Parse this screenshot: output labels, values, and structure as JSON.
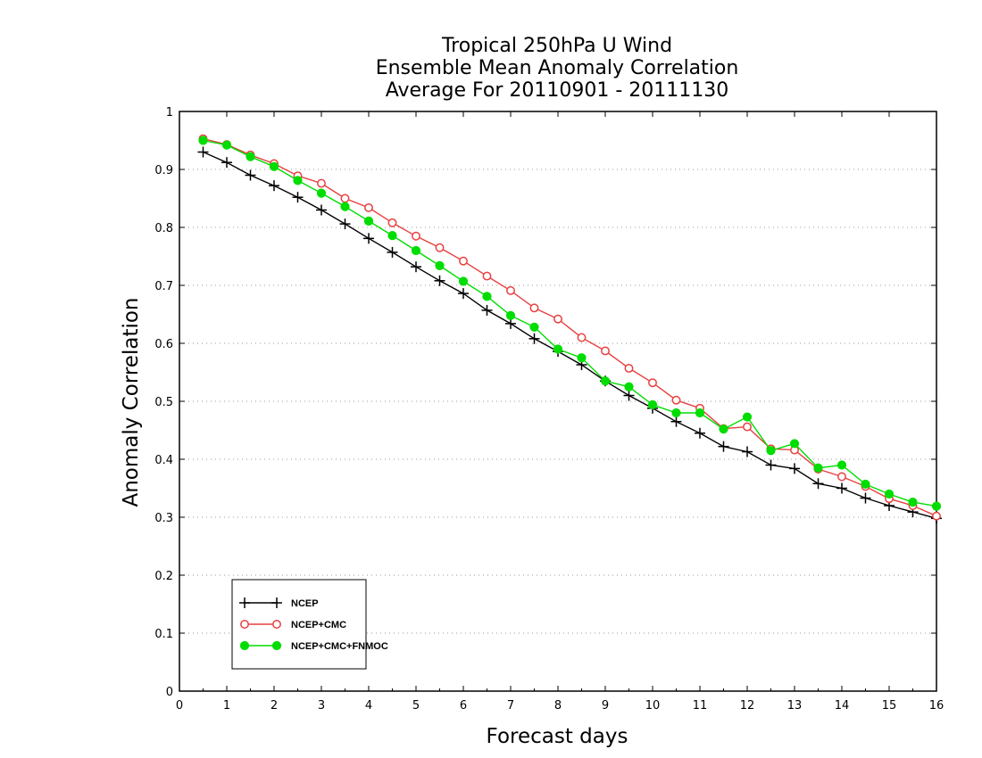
{
  "chart_data": {
    "type": "line",
    "title": [
      "Tropical 250hPa U Wind",
      "Ensemble Mean Anomaly Correlation",
      "Average For 20110901 - 20111130"
    ],
    "xlabel": "Forecast days",
    "ylabel": "Anomaly Correlation",
    "xlim": [
      0,
      16
    ],
    "ylim": [
      0,
      1
    ],
    "xticks": [
      0,
      1,
      2,
      3,
      4,
      5,
      6,
      7,
      8,
      9,
      10,
      11,
      12,
      13,
      14,
      15,
      16
    ],
    "yticks": [
      0,
      0.1,
      0.2,
      0.3,
      0.4,
      0.5,
      0.6,
      0.7,
      0.8,
      0.9,
      1
    ],
    "grid": "horizontal dotted",
    "legend_position": "bottom-left",
    "x": [
      0.5,
      1,
      1.5,
      2,
      2.5,
      3,
      3.5,
      4,
      4.5,
      5,
      5.5,
      6,
      6.5,
      7,
      7.5,
      8,
      8.5,
      9,
      9.5,
      10,
      10.5,
      11,
      11.5,
      12,
      12.5,
      13,
      13.5,
      14,
      14.5,
      15,
      15.5,
      16
    ],
    "series": [
      {
        "name": "NCEP",
        "color": "#000000",
        "marker": "plus",
        "values": [
          0.93,
          0.912,
          0.89,
          0.872,
          0.852,
          0.83,
          0.806,
          0.781,
          0.757,
          0.732,
          0.708,
          0.686,
          0.657,
          0.634,
          0.608,
          0.586,
          0.563,
          0.535,
          0.51,
          0.488,
          0.465,
          0.445,
          0.422,
          0.413,
          0.39,
          0.384,
          0.358,
          0.35,
          0.333,
          0.32,
          0.309,
          0.298
        ]
      },
      {
        "name": "NCEP+CMC",
        "color": "#e84040",
        "marker": "open-circle",
        "values": [
          0.953,
          0.943,
          0.925,
          0.91,
          0.889,
          0.876,
          0.85,
          0.834,
          0.808,
          0.785,
          0.765,
          0.742,
          0.716,
          0.691,
          0.661,
          0.642,
          0.61,
          0.587,
          0.557,
          0.532,
          0.502,
          0.488,
          0.453,
          0.456,
          0.418,
          0.416,
          0.383,
          0.37,
          0.353,
          0.332,
          0.32,
          0.302
        ]
      },
      {
        "name": "NCEP+CMC+FNMOC",
        "color": "#00dd00",
        "marker": "filled-circle",
        "values": [
          0.95,
          0.942,
          0.922,
          0.905,
          0.881,
          0.859,
          0.836,
          0.811,
          0.786,
          0.76,
          0.734,
          0.707,
          0.681,
          0.648,
          0.628,
          0.59,
          0.575,
          0.535,
          0.525,
          0.494,
          0.48,
          0.48,
          0.452,
          0.473,
          0.415,
          0.427,
          0.385,
          0.39,
          0.357,
          0.34,
          0.326,
          0.319
        ]
      }
    ]
  }
}
